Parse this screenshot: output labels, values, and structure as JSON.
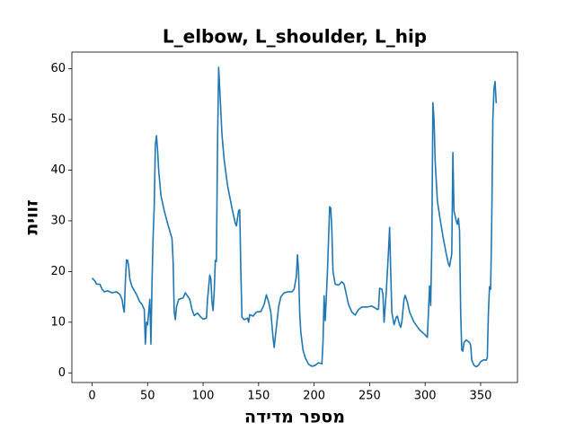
{
  "chart_data": {
    "type": "line",
    "title": "L_elbow, L_shoulder, L_hip",
    "xlabel": "מספר מדידה",
    "ylabel": "זווית",
    "color": "#1f77b4",
    "x": [
      0,
      3,
      4,
      7,
      9,
      11,
      14,
      18,
      22,
      25,
      27,
      28,
      29,
      30,
      31,
      32,
      33,
      34,
      36,
      40,
      43,
      45,
      47,
      48,
      49,
      50,
      51,
      52,
      53,
      54,
      55,
      56,
      57,
      58,
      59,
      60,
      62,
      65,
      68,
      70,
      72,
      73,
      74,
      75,
      76,
      78,
      82,
      84,
      88,
      90,
      92,
      95,
      98,
      100,
      103,
      104,
      106,
      107,
      108,
      109,
      110,
      111,
      112,
      113,
      114,
      115,
      117,
      119,
      122,
      126,
      129,
      130,
      132,
      133,
      134,
      135,
      137,
      140,
      141,
      142,
      145,
      148,
      152,
      155,
      157,
      159,
      161,
      163,
      164,
      166,
      168,
      170,
      173,
      176,
      180,
      182,
      184,
      185,
      186,
      187,
      188,
      190,
      192,
      195,
      198,
      201,
      204,
      207,
      208,
      209,
      210,
      211,
      212,
      214,
      215,
      216,
      217,
      219,
      222,
      225,
      227,
      229,
      231,
      234,
      237,
      240,
      243,
      248,
      252,
      255,
      257,
      258,
      259,
      261,
      262,
      263,
      264,
      265,
      267,
      268,
      269,
      270,
      272,
      274,
      275,
      277,
      278,
      279,
      281,
      282,
      284,
      286,
      290,
      295,
      300,
      302,
      303,
      304,
      305,
      306,
      307,
      308,
      309,
      311,
      313,
      316,
      319,
      321,
      322,
      324,
      325,
      326,
      327,
      328,
      329,
      330,
      331,
      332,
      333,
      334,
      335,
      337,
      340,
      341,
      342,
      344,
      346,
      348,
      350,
      353,
      355,
      356,
      357,
      358,
      359,
      360,
      361,
      362,
      363,
      364
    ],
    "values": [
      18.7,
      18,
      17.5,
      17.5,
      16.5,
      16,
      16.2,
      15.8,
      16,
      15.5,
      14.5,
      13,
      12,
      18,
      22.3,
      22.2,
      21,
      18.5,
      17,
      15.5,
      14,
      13.5,
      12.5,
      5.7,
      10,
      9.5,
      12,
      14.5,
      5.7,
      18,
      27,
      33,
      45,
      46.8,
      44,
      40,
      35,
      32,
      29.5,
      28,
      26.5,
      22,
      12,
      10.5,
      13,
      14.5,
      14.8,
      15.8,
      14.5,
      12.5,
      11.3,
      11.8,
      11,
      10.6,
      10.8,
      14.5,
      19.3,
      18.5,
      14,
      12.3,
      16,
      22.2,
      22,
      45,
      60.3,
      56,
      47,
      42,
      37,
      32.5,
      29.5,
      29,
      32,
      32.2,
      20,
      11,
      10.5,
      10.8,
      10,
      11.5,
      11.2,
      12,
      12.1,
      13.5,
      15.4,
      14,
      12,
      7,
      5,
      9,
      13,
      15,
      15.8,
      16,
      16,
      16.5,
      19,
      23.3,
      20,
      12,
      8,
      4.5,
      3,
      1.7,
      1.3,
      1.5,
      2,
      1.8,
      6,
      15.2,
      10.3,
      15,
      20,
      32.8,
      32.5,
      28,
      20,
      17.5,
      17.3,
      18,
      17.5,
      15.5,
      13.5,
      12,
      11.4,
      12.5,
      13,
      13,
      13.2,
      12.8,
      12.5,
      12.6,
      16.7,
      16.5,
      15.5,
      10,
      13,
      16,
      24,
      28.7,
      20,
      12,
      9.5,
      11,
      11.2,
      9.5,
      9,
      10,
      14.5,
      15.3,
      14,
      12,
      10,
      8.5,
      7.5,
      7,
      12,
      17.2,
      13.3,
      25,
      53.3,
      50,
      42,
      34,
      31,
      27,
      23.5,
      21.5,
      21,
      23.5,
      43.5,
      32,
      31,
      30,
      29.3,
      30.5,
      28,
      12,
      4.5,
      4.3,
      6,
      6.5,
      6,
      5.5,
      2.5,
      1.5,
      1.2,
      1.5,
      2.2,
      2.6,
      2.5,
      3,
      12,
      17,
      16.5,
      30,
      50,
      56,
      57.5,
      53.2
    ],
    "xlim": [
      -18.2,
      383.2
    ],
    "ylim": [
      -1.9,
      63.3
    ],
    "xticks": [
      0,
      50,
      100,
      150,
      200,
      250,
      300,
      350
    ],
    "yticks": [
      0,
      10,
      20,
      30,
      40,
      50,
      60
    ]
  }
}
